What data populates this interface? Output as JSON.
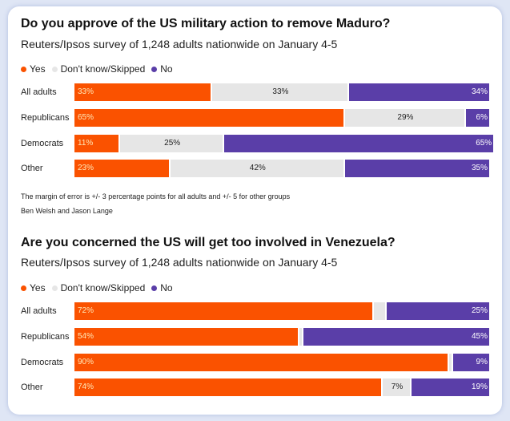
{
  "colors": {
    "yes": "#fa5200",
    "dont_know": "#e6e6e6",
    "no": "#5a3ea8"
  },
  "legend": {
    "yes": "Yes",
    "dont_know": "Don't know/Skipped",
    "no": "No"
  },
  "charts": [
    {
      "title": "Do you approve of the US military action to remove Maduro?",
      "subtitle": "Reuters/Ipsos survey of 1,248 adults nationwide on January 4-5",
      "note": "The margin of error is +/- 3 percentage points for all adults and +/- 5 for other groups",
      "byline": "Ben Welsh and Jason Lange"
    },
    {
      "title": "Are you concerned the US will get too involved in Venezuela?",
      "subtitle": "Reuters/Ipsos survey of 1,248 adults nationwide on January 4-5"
    }
  ],
  "chart_data": [
    {
      "type": "bar",
      "stacked": true,
      "orientation": "horizontal",
      "title": "Do you approve of the US military action to remove Maduro?",
      "categories": [
        "All adults",
        "Republicans",
        "Democrats",
        "Other"
      ],
      "series": [
        {
          "name": "Yes",
          "values": [
            33,
            65,
            11,
            23
          ],
          "labels": [
            "33%",
            "65%",
            "11%",
            "23%"
          ]
        },
        {
          "name": "Don't know/Skipped",
          "values": [
            33,
            29,
            25,
            42
          ],
          "labels": [
            "33%",
            "29%",
            "25%",
            "42%"
          ]
        },
        {
          "name": "No",
          "values": [
            34,
            6,
            65,
            35
          ],
          "labels": [
            "34%",
            "6%",
            "65%",
            "35%"
          ]
        }
      ],
      "xlim": [
        0,
        100
      ],
      "legend_position": "top-left",
      "grid": false
    },
    {
      "type": "bar",
      "stacked": true,
      "orientation": "horizontal",
      "title": "Are you concerned the US will get too involved in Venezuela?",
      "categories": [
        "All adults",
        "Republicans",
        "Democrats",
        "Other"
      ],
      "series": [
        {
          "name": "Yes",
          "values": [
            72,
            54,
            90,
            74
          ],
          "labels": [
            "72%",
            "54%",
            "90%",
            "74%"
          ]
        },
        {
          "name": "Don't know/Skipped",
          "values": [
            3,
            1,
            1,
            7
          ],
          "labels": [
            "",
            "",
            "",
            "7%"
          ]
        },
        {
          "name": "No",
          "values": [
            25,
            45,
            9,
            19
          ],
          "labels": [
            "25%",
            "45%",
            "9%",
            "19%"
          ]
        }
      ],
      "xlim": [
        0,
        100
      ],
      "legend_position": "top-left",
      "grid": false
    }
  ]
}
